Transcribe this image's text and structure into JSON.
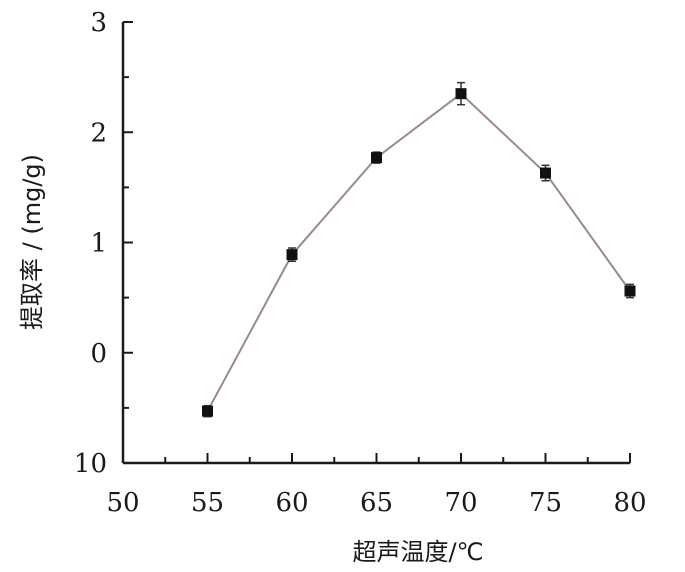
{
  "chart_data": {
    "type": "line",
    "xlabel": "超声温度/℃",
    "ylabel": "提取率 / (mg/g)",
    "x_ticks": [
      "50",
      "55",
      "60",
      "65",
      "70",
      "75",
      "80"
    ],
    "y_ticks": [
      "10",
      "0",
      "1",
      "2",
      "3"
    ],
    "x_range": [
      50,
      80
    ],
    "y_axis_scale": "categorical positions as printed (bottom to top: 10, 0, 1, 2, 3)",
    "grid": false,
    "legend": "none",
    "series": [
      {
        "x": [
          55,
          60,
          65,
          70,
          75,
          80
        ],
        "y_position": [
          -0.53,
          0.89,
          1.77,
          2.35,
          1.63,
          0.56
        ],
        "error": [
          0.05,
          0.06,
          0.05,
          0.1,
          0.07,
          0.06
        ]
      }
    ],
    "colors": {
      "line": "#9a8a8a",
      "marker": "#111111",
      "axis": "#1a1a1a"
    }
  }
}
